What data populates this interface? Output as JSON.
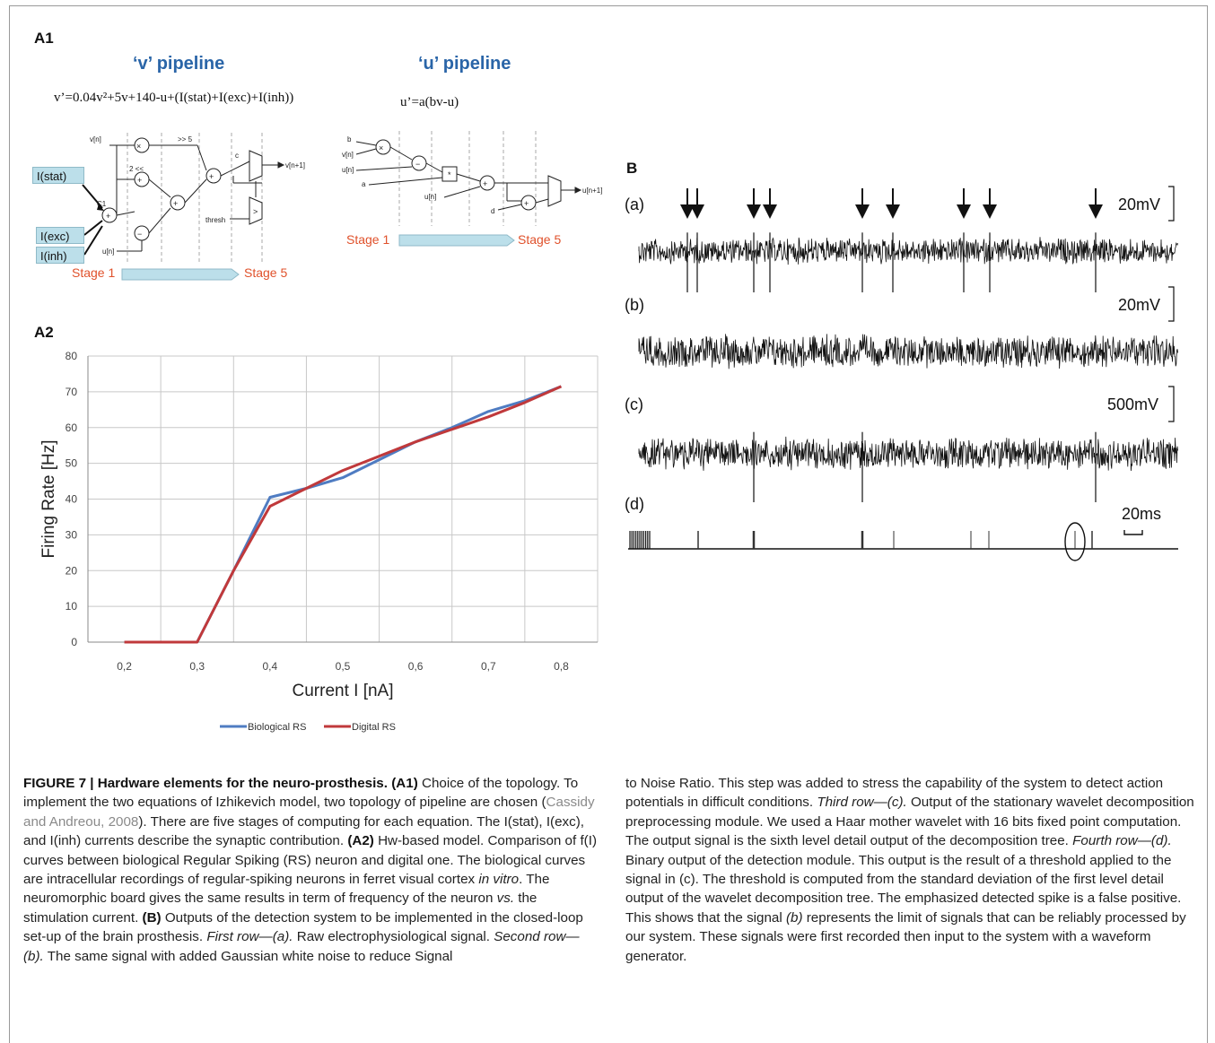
{
  "panels": {
    "a1": "A1",
    "a2": "A2",
    "b": "B"
  },
  "pipelines": {
    "v_title": "‘v’ pipeline",
    "u_title": "‘u’ pipeline",
    "v_equation": "v’=0.04v²+5v+140-u+(I(stat)+I(exc)+I(inh))",
    "u_equation": "u’=a(bv-u)",
    "inputs": [
      "I(stat)",
      "I(exc)",
      "I(inh)"
    ],
    "stage_start": "Stage 1",
    "stage_end": "Stage 5",
    "v_node_labels": {
      "vn": "v[n]",
      "un": "u[n]",
      "c1": "C1",
      "c": "c",
      "out": "v[n+1]",
      "thresh": "thresh",
      "shift5": ">> 5",
      "shift2": "2 <<"
    },
    "u_node_labels": {
      "b": "b",
      "vn": "v[n]",
      "un_top": "u[n]",
      "a": "a",
      "un": "u[n]",
      "d": "d",
      "out": "u[n+1]"
    }
  },
  "chart_data": {
    "type": "line",
    "title": "",
    "xlabel": "Current I [nA]",
    "ylabel": "Firing Rate [Hz]",
    "x": [
      "0,2",
      "0,3",
      "0,4",
      "0,5",
      "0,6",
      "0,7",
      "0,8"
    ],
    "x_values": [
      0.2,
      0.3,
      0.35,
      0.4,
      0.45,
      0.5,
      0.55,
      0.6,
      0.65,
      0.7,
      0.75,
      0.8
    ],
    "ylim": [
      0,
      80
    ],
    "yticks": [
      "0",
      "10",
      "20",
      "30",
      "40",
      "50",
      "60",
      "70",
      "80"
    ],
    "grid": true,
    "legend": "bottom",
    "series": [
      {
        "name": "Biological RS",
        "color": "#4f7cc2",
        "values": [
          0,
          0,
          20,
          40.5,
          43,
          46,
          51,
          56,
          60,
          64.5,
          67.5,
          71.5
        ]
      },
      {
        "name": "Digital RS",
        "color": "#c0393b",
        "values": [
          0,
          0,
          20,
          38,
          43,
          48,
          52,
          56,
          59.5,
          63,
          67,
          71.5
        ]
      }
    ]
  },
  "panel_b": {
    "rows": [
      {
        "tag": "(a)",
        "scale": "20mV"
      },
      {
        "tag": "(b)",
        "scale": "20mV"
      },
      {
        "tag": "(c)",
        "scale": "500mV"
      },
      {
        "tag": "(d)",
        "scale": "20ms"
      }
    ]
  },
  "caption": {
    "title": "FIGURE 7 | Hardware elements for the neuro-prosthesis.",
    "a1_tag": "(A1)",
    "a1_text_1": " Choice of the topology. To implement the two equations of Izhikevich model, two topology of pipeline are chosen (",
    "a1_cite": "Cassidy and Andreou, 2008",
    "a1_text_2": "). There are five stages of computing for each equation. The I(stat), I(exc), and I(inh) currents describe the synaptic contribution. ",
    "a2_tag": "(A2)",
    "a2_text_1": " Hw-based model. Comparison of f(I) curves between biological Regular Spiking (RS) neuron and digital one. The biological curves are intracellular recordings of regular-spiking neurons in ferret visual cortex ",
    "a2_italic_1": "in vitro",
    "a2_text_2": ". The neuromorphic board gives the same results in term of frequency of the neuron ",
    "a2_italic_2": "vs.",
    "a2_text_3": " the stimulation current. ",
    "b_tag": "(B)",
    "b_text_1": " Outputs of the detection system to be implemented in the closed-loop set-up of the brain prosthesis. ",
    "b_first_row": "First row—(a).",
    "b_text_2": " Raw electrophysiological signal. ",
    "b_second_row": "Second row—(b).",
    "b_text_3": " The same signal with added Gaussian white noise to reduce Signal to Noise Ratio. This step was added to stress the capability of the system to detect action potentials in difficult conditions. ",
    "b_third_row": "Third row—(c).",
    "b_text_4": " Output of the stationary wavelet decomposition preprocessing module. We used a Haar mother wavelet with 16 bits fixed point computation. The output signal is the sixth level detail output of the decomposition tree. ",
    "b_fourth_row": "Fourth row—(d).",
    "b_text_5": " Binary output of the detection module. This output is the result of a threshold applied to the signal in (c). The threshold is computed from the standard deviation of the first level detail output of the wavelet decomposition tree. The emphasized detected spike is a false positive. This shows that the signal ",
    "b_italic_b": "(b)",
    "b_text_6": " represents the limit of signals that can be reliably processed by our system. These signals were first recorded then input to the system with a waveform generator."
  }
}
